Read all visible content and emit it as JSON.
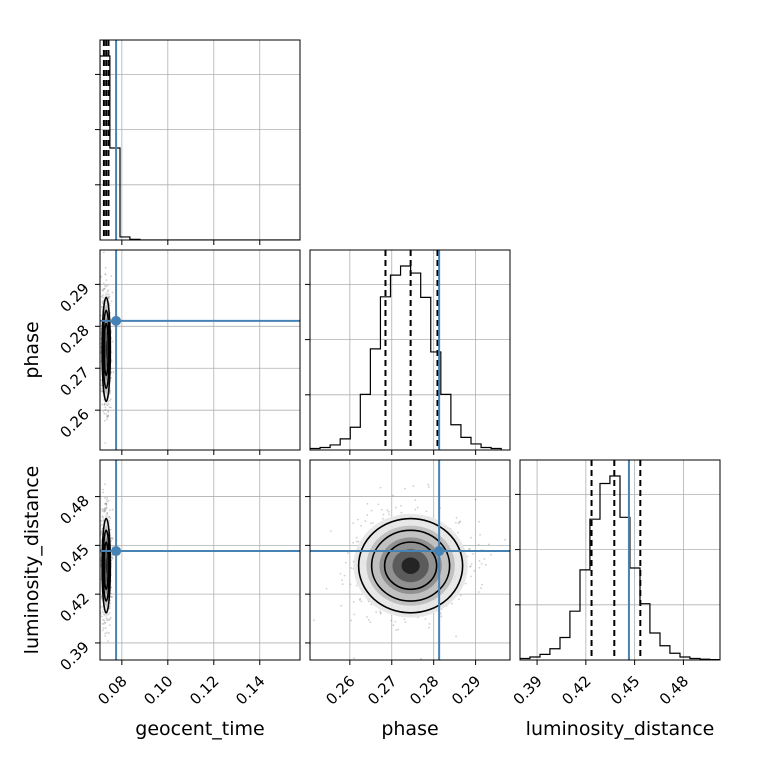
{
  "chart_data": {
    "type": "corner",
    "parameters": [
      "geocent_time",
      "phase",
      "luminosity_distance"
    ],
    "axis_labels": {
      "x": [
        "geocent_time",
        "phase",
        "luminosity_distance"
      ],
      "y": [
        "",
        "phase",
        "luminosity_distance"
      ]
    },
    "grid": true,
    "truth_color": "#4682b4",
    "truths": {
      "geocent_time": 0.0775,
      "phase": 0.2813,
      "luminosity_distance": 0.4465
    },
    "ranges": {
      "geocent_time": [
        0.0705,
        0.1575
      ],
      "phase": [
        0.2505,
        0.2982
      ],
      "luminosity_distance": [
        0.3795,
        0.5025
      ]
    },
    "ticks": {
      "geocent_time": [
        0.08,
        0.1,
        0.12,
        0.14
      ],
      "phase": [
        0.26,
        0.27,
        0.28,
        0.29
      ],
      "luminosity_distance": [
        0.39,
        0.42,
        0.45,
        0.48
      ]
    },
    "tick_labels": {
      "geocent_time": [
        "0.08",
        "0.10",
        "0.12",
        "0.14"
      ],
      "phase": [
        "0.26",
        "0.27",
        "0.28",
        "0.29"
      ],
      "luminosity_distance": [
        "0.39",
        "0.42",
        "0.45",
        "0.48"
      ]
    },
    "quantiles": {
      "geocent_time": [
        0.0722,
        0.0732,
        0.0742
      ],
      "phase": [
        0.2685,
        0.2745,
        0.2809
      ],
      "luminosity_distance": [
        0.4235,
        0.4375,
        0.4535
      ]
    },
    "histograms": {
      "geocent_time": {
        "bin_edges": [
          0.0705,
          0.0748,
          0.0792,
          0.0835,
          0.0879,
          0.1575
        ],
        "counts": [
          2400,
          1200,
          40,
          8,
          0
        ]
      },
      "phase": {
        "bin_edges": [
          0.2505,
          0.2529,
          0.2553,
          0.2577,
          0.2601,
          0.2625,
          0.2649,
          0.2673,
          0.2697,
          0.2721,
          0.2745,
          0.2769,
          0.2793,
          0.2817,
          0.2841,
          0.2865,
          0.2889,
          0.2913,
          0.2937,
          0.2961
        ],
        "counts": [
          3,
          5,
          10,
          22,
          45,
          110,
          200,
          303,
          346,
          364,
          350,
          302,
          194,
          110,
          50,
          25,
          12,
          5,
          3
        ]
      },
      "luminosity_distance": {
        "bin_edges": [
          0.3795,
          0.3856,
          0.3918,
          0.3979,
          0.4041,
          0.4102,
          0.4164,
          0.4225,
          0.4287,
          0.4348,
          0.441,
          0.4471,
          0.4533,
          0.4594,
          0.4656,
          0.4717,
          0.4779,
          0.484,
          0.4902,
          0.4963,
          0.5025
        ],
        "counts": [
          4,
          8,
          15,
          30,
          60,
          130,
          240,
          375,
          470,
          490,
          380,
          245,
          150,
          72,
          38,
          18,
          8,
          4,
          2,
          1
        ]
      }
    },
    "posterior_means": {
      "geocent_time": 0.0732,
      "phase": 0.2745,
      "luminosity_distance": 0.4375
    },
    "posterior_spreads": {
      "geocent_time": 0.0009,
      "phase": 0.0062,
      "luminosity_distance": 0.0145
    }
  }
}
